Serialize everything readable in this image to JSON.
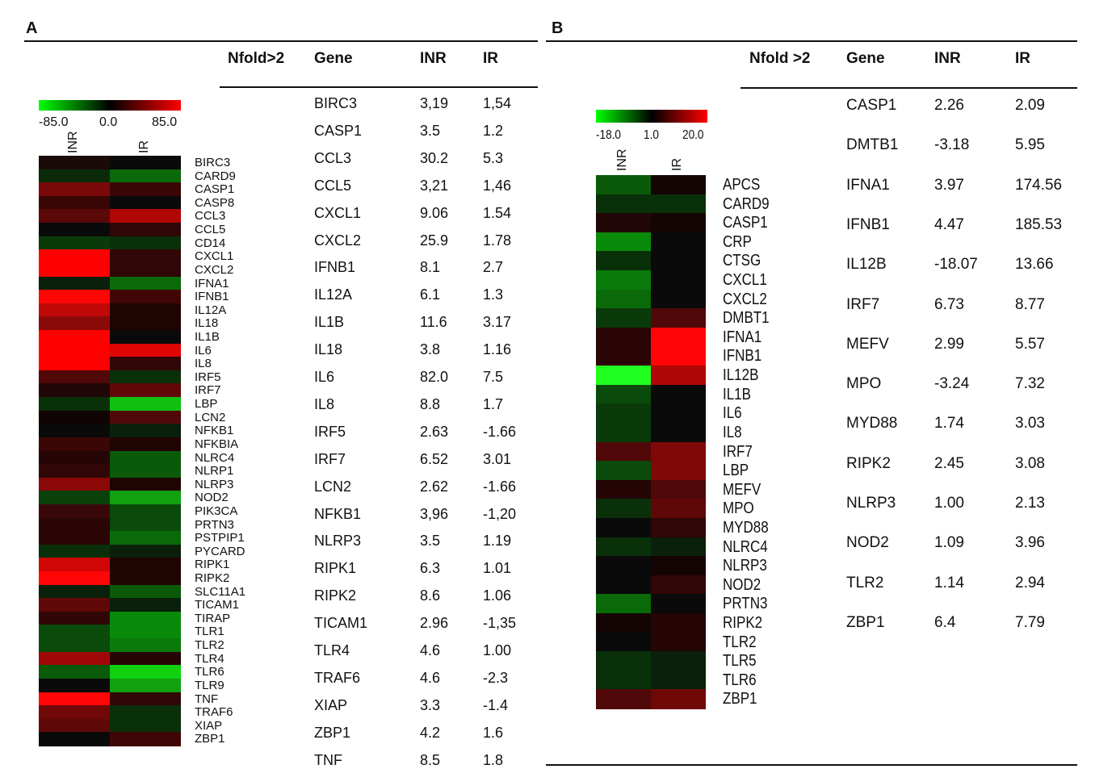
{
  "panel_a": {
    "label": "A",
    "legend": {
      "min": "-85.0",
      "mid": "0.0",
      "max": "85.0"
    },
    "columns": [
      "INR",
      "IR"
    ],
    "heatmap_genes": [
      "BIRC3",
      "CARD9",
      "CASP1",
      "CASP8",
      "CCL3",
      "CCL5",
      "CD14",
      "CXCL1",
      "CXCL2",
      "IFNA1",
      "IFNB1",
      "IL12A",
      "IL18",
      "IL1B",
      "IL6",
      "IL8",
      "IRF5",
      "IRF7",
      "LBP",
      "LCN2",
      "NFKB1",
      "NFKBIA",
      "NLRC4",
      "NLRP1",
      "NLRP3",
      "NOD2",
      "PIK3CA",
      "PRTN3",
      "PSTPIP1",
      "PYCARD",
      "RIPK1",
      "RIPK2",
      "SLC11A1",
      "TICAM1",
      "TIRAP",
      "TLR1",
      "TLR2",
      "TLR4",
      "TLR6",
      "TLR9",
      "TNF",
      "TRAF6",
      "XIAP",
      "ZBP1"
    ],
    "heatmap_colors": {
      "inr": [
        "#1a0a08",
        "#0a2a0a",
        "#7a0a0a",
        "#3a0505",
        "#5a0808",
        "#0a0a0a",
        "#0a3a0a",
        "#ff0000",
        "#ff0000",
        "#0a200a",
        "#ff0505",
        "#c00808",
        "#8a0a0a",
        "#ff0000",
        "#ff0000",
        "#ff0000",
        "#500808",
        "#200606",
        "#0a300a",
        "#100404",
        "#0a0a0a",
        "#3a0606",
        "#250505",
        "#300606",
        "#8a0808",
        "#0a400a",
        "#3a0808",
        "#2a0606",
        "#2a0606",
        "#0a300a",
        "#d00606",
        "#ff0505",
        "#0a200a",
        "#600808",
        "#300606",
        "#0a4a0a",
        "#0a4a0a",
        "#a00808",
        "#0a5a0a",
        "#0a0a0a",
        "#ff0505",
        "#700808",
        "#600808",
        "#0a0a0a"
      ],
      "ir": [
        "#0a0a0a",
        "#0a6a0a",
        "#3a0606",
        "#0a0a0a",
        "#b00606",
        "#300606",
        "#0a300a",
        "#300606",
        "#300606",
        "#0a6a0a",
        "#400606",
        "#200404",
        "#200404",
        "#0a0a0a",
        "#e00505",
        "#300606",
        "#0a300a",
        "#600808",
        "#10c010",
        "#500808",
        "#0a200a",
        "#200404",
        "#0a5a0a",
        "#0a5a0a",
        "#200404",
        "#10a010",
        "#0a4a0a",
        "#0a4a0a",
        "#0a6a0a",
        "#0a200a",
        "#200404",
        "#200404",
        "#0a5a0a",
        "#0a200a",
        "#0a8a0a",
        "#0a8a0a",
        "#0a7a0a",
        "#250505",
        "#10d010",
        "#10a010",
        "#300606",
        "#0a300a",
        "#0a300a",
        "#400606"
      ]
    },
    "table_header": {
      "nfold": "Nfold>2",
      "gene": "Gene",
      "inr": "INR",
      "ir": "IR"
    },
    "table_rows": [
      [
        "BIRC3",
        "3,19",
        "1,54"
      ],
      [
        "CASP1",
        "3.5",
        "1.2"
      ],
      [
        "CCL3",
        "30.2",
        "5.3"
      ],
      [
        "CCL5",
        "3,21",
        "1,46"
      ],
      [
        "CXCL1",
        "9.06",
        "1.54"
      ],
      [
        "CXCL2",
        "25.9",
        "1.78"
      ],
      [
        "IFNB1",
        "8.1",
        "2.7"
      ],
      [
        "IL12A",
        "6.1",
        "1.3"
      ],
      [
        "IL1B",
        "11.6",
        "3.17"
      ],
      [
        "IL18",
        "3.8",
        "1.16"
      ],
      [
        "IL6",
        "82.0",
        "7.5"
      ],
      [
        "IL8",
        "8.8",
        "1.7"
      ],
      [
        "IRF5",
        "2.63",
        "-1.66"
      ],
      [
        "IRF7",
        "6.52",
        "3.01"
      ],
      [
        "LCN2",
        "2.62",
        "-1.66"
      ],
      [
        "NFKB1",
        "3,96",
        "-1,20"
      ],
      [
        "NLRP3",
        "3.5",
        "1.19"
      ],
      [
        "RIPK1",
        "6.3",
        "1.01"
      ],
      [
        "RIPK2",
        "8.6",
        "1.06"
      ],
      [
        "TICAM1",
        "2.96",
        "-1,35"
      ],
      [
        "TLR4",
        "4.6",
        "1.00"
      ],
      [
        "TRAF6",
        "4.6",
        "-2.3"
      ],
      [
        "XIAP",
        "3.3",
        "-1.4"
      ],
      [
        "ZBP1",
        "4.2",
        "1.6"
      ],
      [
        "TNF",
        "8.5",
        "1.8"
      ]
    ]
  },
  "panel_b": {
    "label": "B",
    "legend": {
      "min": "-18.0",
      "mid": "1.0",
      "max": "20.0"
    },
    "columns": [
      "INR",
      "IR"
    ],
    "heatmap_genes": [
      "APCS",
      "CARD9",
      "CASP1",
      "CRP",
      "CTSG",
      "CXCL1",
      "CXCL2",
      "DMBT1",
      "IFNA1",
      "IFNB1",
      "IL12B",
      "IL1B",
      "IL6",
      "IL8",
      "IRF7",
      "LBP",
      "MEFV",
      "MPO",
      "MYD88",
      "NLRC4",
      "NLRP3",
      "NOD2",
      "PRTN3",
      "RIPK2",
      "TLR2",
      "TLR5",
      "TLR6",
      "ZBP1"
    ],
    "heatmap_colors": {
      "inr": [
        "#0a5a0a",
        "#0a300a",
        "#200606",
        "#0a8a0a",
        "#0a300a",
        "#0a7a0a",
        "#0a6a0a",
        "#0a3a0a",
        "#2a0606",
        "#2a0606",
        "#20ff20",
        "#0a4a0a",
        "#0a3a0a",
        "#0a3a0a",
        "#500808",
        "#0a4a0a",
        "#250505",
        "#0a300a",
        "#0a0a0a",
        "#0a300a",
        "#0a0a0a",
        "#0a0a0a",
        "#0a6a0a",
        "#150404",
        "#0a0a0a",
        "#0a300a",
        "#0a300a",
        "#500808"
      ],
      "ir": [
        "#150404",
        "#0a300a",
        "#150404",
        "#0a0a0a",
        "#0a0a0a",
        "#0a0a0a",
        "#0a0a0a",
        "#500808",
        "#ff0505",
        "#ff0505",
        "#b00606",
        "#0a0a0a",
        "#0a0a0a",
        "#0a0a0a",
        "#800808",
        "#800808",
        "#500808",
        "#600808",
        "#300606",
        "#0a200a",
        "#150404",
        "#300606",
        "#0a0a0a",
        "#250505",
        "#250505",
        "#0a200a",
        "#0a200a",
        "#700808"
      ]
    },
    "table_header": {
      "nfold": "Nfold >2",
      "gene": "Gene",
      "inr": "INR",
      "ir": "IR"
    },
    "table_rows": [
      [
        "CASP1",
        "2.26",
        "2.09"
      ],
      [
        "DMTB1",
        "-3.18",
        "5.95"
      ],
      [
        "IFNA1",
        "3.97",
        "174.56"
      ],
      [
        "IFNB1",
        "4.47",
        "185.53"
      ],
      [
        "IL12B",
        "-18.07",
        "13.66"
      ],
      [
        "IRF7",
        "6.73",
        "8.77"
      ],
      [
        "MEFV",
        "2.99",
        "5.57"
      ],
      [
        "MPO",
        "-3.24",
        "7.32"
      ],
      [
        "MYD88",
        "1.74",
        "3.03"
      ],
      [
        "RIPK2",
        "2.45",
        "3.08"
      ],
      [
        "NLRP3",
        "1.00",
        "2.13"
      ],
      [
        "NOD2",
        "1.09",
        "3.96"
      ],
      [
        "TLR2",
        "1.14",
        "2.94"
      ],
      [
        "ZBP1",
        "6.4",
        "7.79"
      ]
    ]
  }
}
